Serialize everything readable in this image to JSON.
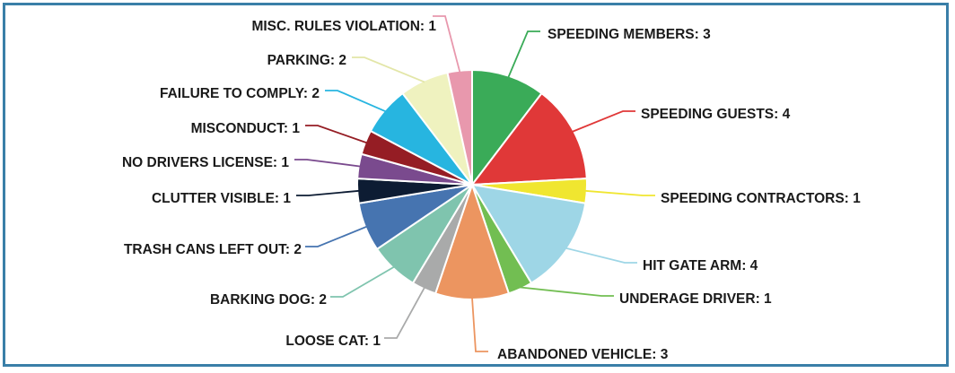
{
  "chart_data": {
    "type": "pie",
    "title": "",
    "slices": [
      {
        "label": "SPEEDING MEMBERS: 3",
        "category": "SPEEDING MEMBERS",
        "value": 3,
        "color": "#3aab58"
      },
      {
        "label": "SPEEDING GUESTS: 4",
        "category": "SPEEDING GUESTS",
        "value": 4,
        "color": "#e03838"
      },
      {
        "label": "SPEEDING CONTRACTORS: 1",
        "category": "SPEEDING CONTRACTORS",
        "value": 1,
        "color": "#f0e630"
      },
      {
        "label": "HIT GATE ARM: 4",
        "category": "HIT GATE ARM",
        "value": 4,
        "color": "#9ed6e6"
      },
      {
        "label": "UNDERAGE DRIVER: 1",
        "category": "UNDERAGE DRIVER",
        "value": 1,
        "color": "#72be52"
      },
      {
        "label": "ABANDONED VEHICLE: 3",
        "category": "ABANDONED VEHICLE",
        "value": 3,
        "color": "#ec9560"
      },
      {
        "label": "LOOSE CAT: 1",
        "category": "LOOSE CAT",
        "value": 1,
        "color": "#a9aaaa"
      },
      {
        "label": "BARKING DOG: 2",
        "category": "BARKING DOG",
        "value": 2,
        "color": "#7fc4ae"
      },
      {
        "label": "TRASH CANS LEFT OUT: 2",
        "category": "TRASH CANS LEFT OUT",
        "value": 2,
        "color": "#4674b0"
      },
      {
        "label": "CLUTTER VISIBLE: 1",
        "category": "CLUTTER VISIBLE",
        "value": 1,
        "color": "#0d1c33"
      },
      {
        "label": "NO DRIVERS LICENSE: 1",
        "category": "NO DRIVERS LICENSE",
        "value": 1,
        "color": "#7a4a8e"
      },
      {
        "label": "MISCONDUCT: 1",
        "category": "MISCONDUCT",
        "value": 1,
        "color": "#951d24"
      },
      {
        "label": "FAILURE TO COMPLY: 2",
        "category": "FAILURE TO COMPLY",
        "value": 2,
        "color": "#27b5e0"
      },
      {
        "label": "PARKING: 2",
        "category": "PARKING",
        "value": 2,
        "color": "#eff2bf"
      },
      {
        "label": "MISC. RULES VIOLATION: 1",
        "category": "MISC. RULES VIOLATION",
        "value": 1,
        "color": "#e898ad"
      }
    ],
    "legend": "none",
    "data_labels": "outside-with-leader-lines",
    "start_angle": "12 o'clock",
    "direction": "clockwise"
  }
}
